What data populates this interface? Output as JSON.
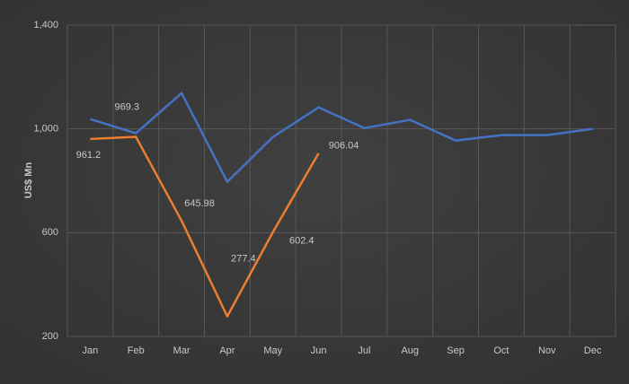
{
  "chart_data": {
    "type": "line",
    "y_label": "US$ Mn",
    "categories": [
      "Jan",
      "Feb",
      "Mar",
      "Apr",
      "May",
      "Jun",
      "Jul",
      "Aug",
      "Sep",
      "Oct",
      "Nov",
      "Dec"
    ],
    "series": [
      {
        "color": "#4472c4",
        "values": [
          1038,
          983,
          1138,
          796,
          969,
          1083,
          1003,
          1035,
          955,
          976,
          976,
          1000
        ]
      },
      {
        "color": "#ed7d31",
        "values": [
          961.2,
          969.3,
          645.98,
          277.4,
          602.4,
          906.04,
          null,
          null,
          null,
          null,
          null,
          null
        ]
      }
    ],
    "data_labels_series": 1,
    "ylim": [
      200,
      1400
    ],
    "yticks": [
      200,
      600,
      {
        "value": 1000,
        "label": "1,000"
      },
      {
        "value": 1400,
        "label": "1,400"
      }
    ],
    "grid": true
  }
}
